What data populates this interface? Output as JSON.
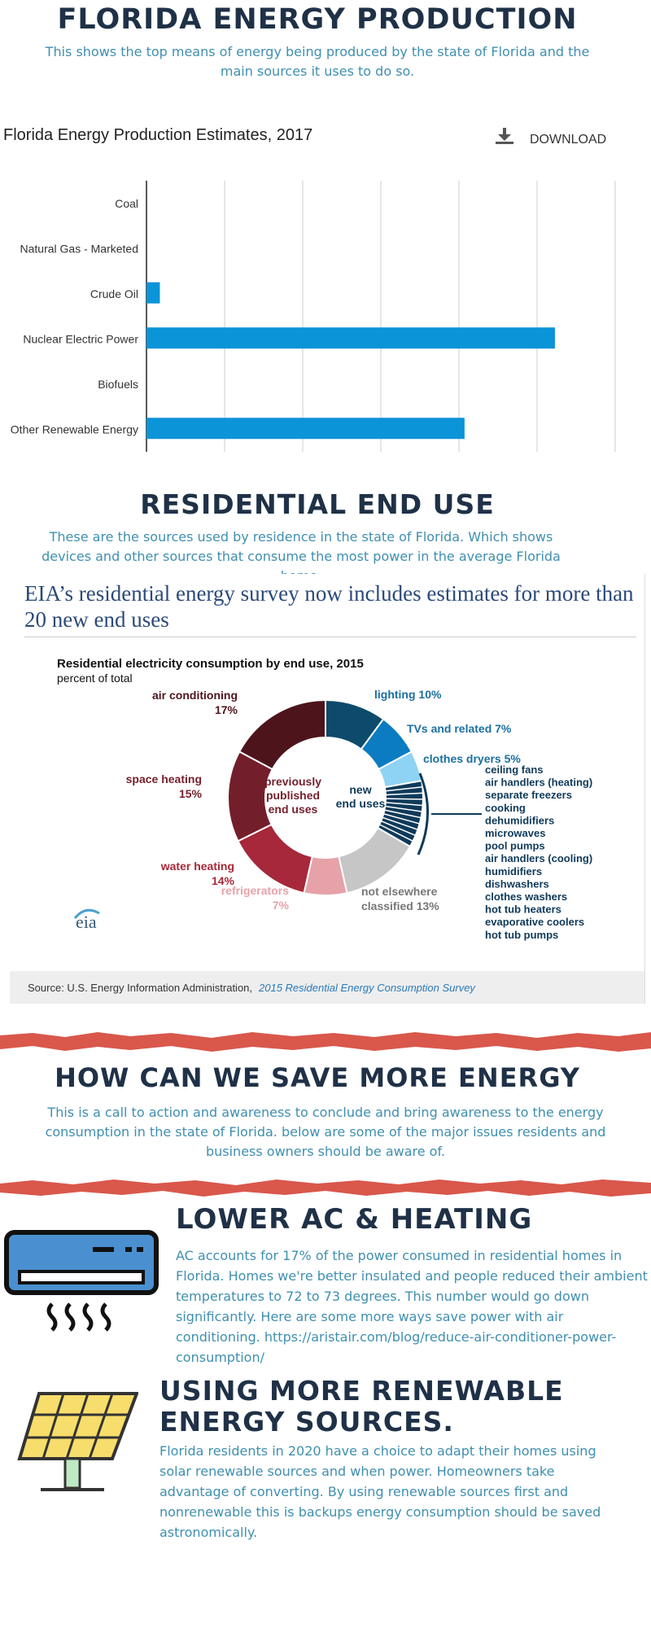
{
  "header": {
    "title": "FLORIDA ENERGY PRODUCTION",
    "subtitle": "This shows the top means of energy being produced by the state of Florida and the main sources it uses to do so."
  },
  "production_chart": {
    "title": "Florida Energy Production Estimates, 2017",
    "download_label": "DOWNLOAD"
  },
  "residential": {
    "title": "RESIDENTIAL END USE",
    "subtitle": "These are the sources used by residence in the state of Florida. Which shows devices and other sources that consume the most power in the average Florida home.",
    "eia_headline": "EIA’s residential energy survey now includes estimates for more than 20 new end uses",
    "source_prefix": "Source: U.S. Energy Information Administration, ",
    "source_link": "2015 Residential Energy Consumption Survey",
    "logo_text": "eia"
  },
  "save": {
    "title": "HOW CAN WE SAVE MORE ENERGY",
    "subtitle": "This is a call to action and awareness to conclude and bring awareness to the energy consumption in the state of Florida. below are some of the major issues residents and business owners should be aware of."
  },
  "tips": [
    {
      "title": "LOWER AC & HEATING",
      "body": "AC accounts for 17% of the power consumed in residential homes in Florida. Homes we're better insulated and people reduced their ambient temperatures to 72 to 73 degrees. This number would go down significantly. Here are some more ways save power with air conditioning. https://aristair.com/blog/reduce-air-conditioner-power-consumption/",
      "icon": "air-conditioner-icon"
    },
    {
      "title": "USING MORE RENEWABLE ENERGY SOURCES.",
      "body": "Florida residents in 2020 have a choice to adapt their homes using solar renewable sources and when power. Homeowners take advantage of converting. By using renewable sources first and nonrenewable this is backups energy consumption should be saved astronomically.",
      "icon": "solar-panel-icon"
    }
  ],
  "colors": {
    "navy": "#1f3147",
    "teal_text": "#3f8fb0",
    "bar_blue": "#0b94d8",
    "torn_red": "#d9574b"
  },
  "chart_data": [
    {
      "type": "bar",
      "orientation": "horizontal",
      "title": "Florida Energy Production Estimates, 2017",
      "categories": [
        "Coal",
        "Natural Gas - Marketed",
        "Crude Oil",
        "Nuclear Electric Power",
        "Biofuels",
        "Other Renewable Energy"
      ],
      "values": [
        0,
        0,
        2,
        61,
        0,
        47.5
      ],
      "xlim": [
        0,
        70
      ],
      "gridlines": 7,
      "grid": true
    },
    {
      "type": "pie",
      "donut": true,
      "title": "Residential electricity consumption by end use, 2015",
      "subtitle": "percent of total",
      "inner_labels": [
        {
          "text": "previously",
          "group": "old"
        },
        {
          "text": "published",
          "group": "old"
        },
        {
          "text": "end uses",
          "group": "old"
        },
        {
          "text": "new",
          "group": "new"
        },
        {
          "text": "end uses",
          "group": "new"
        }
      ],
      "slices": [
        {
          "label": "lighting 10%",
          "value": 10,
          "color": "#0d4a6b"
        },
        {
          "label": "TVs and related 7%",
          "value": 7,
          "color": "#0b7cc1"
        },
        {
          "label": "clothes dryers 5%",
          "value": 5,
          "color": "#8fd3f4"
        },
        {
          "label": "",
          "value": 11,
          "color": "#0f3a5a",
          "striped": true
        },
        {
          "label": "not elsewhere classified 13%",
          "value": 13,
          "color": "#c6c6c6"
        },
        {
          "label": "refrigerators 7%",
          "value": 7,
          "color": "#e6a2a8"
        },
        {
          "label": "water heating 14%",
          "value": 14,
          "color": "#a6283a"
        },
        {
          "label": "space heating 15%",
          "value": 15,
          "color": "#731f2b"
        },
        {
          "label": "air conditioning 17%",
          "value": 17,
          "color": "#4e141c"
        }
      ],
      "new_end_uses": [
        "ceiling fans",
        "air handlers (heating)",
        "separate freezers",
        "cooking",
        "dehumidifiers",
        "microwaves",
        "pool pumps",
        "air handlers (cooling)",
        "humidifiers",
        "dishwashers",
        "clothes washers",
        "hot tub heaters",
        "evaporative coolers",
        "hot tub pumps"
      ]
    }
  ]
}
